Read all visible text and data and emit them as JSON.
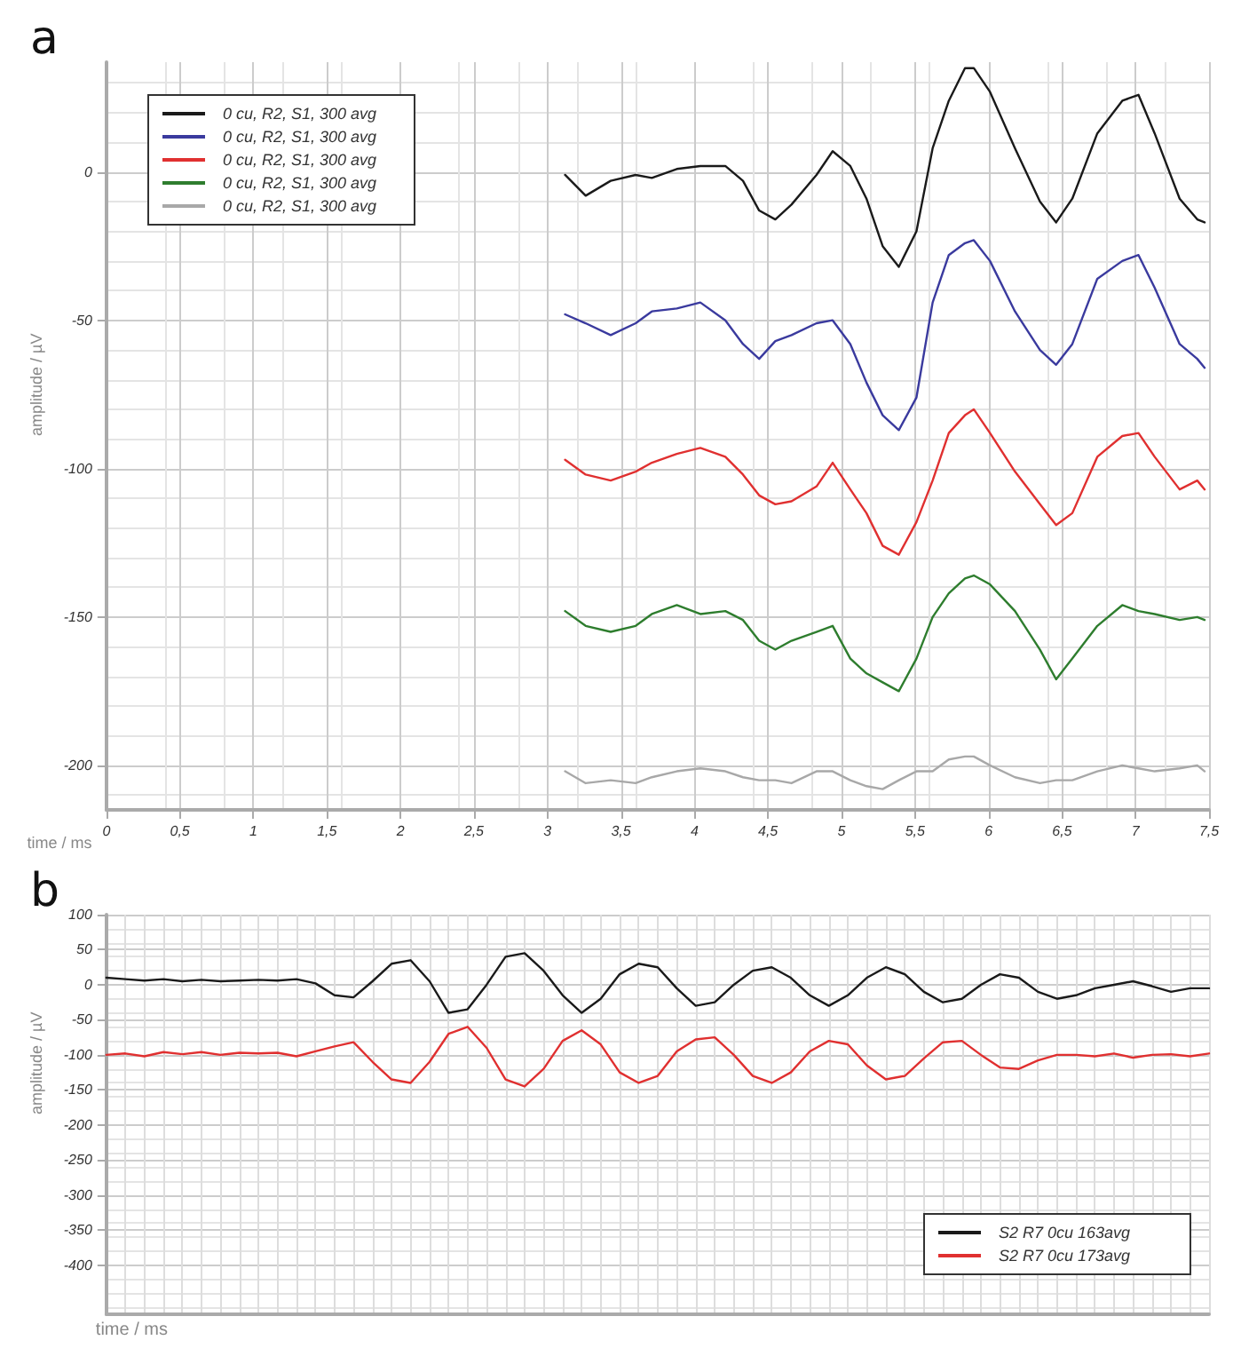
{
  "chart_data": [
    {
      "type": "line",
      "title": "a",
      "xlabel": "time / ms",
      "ylabel": "amplitude / µV",
      "xlim": [
        0,
        7.5
      ],
      "ylim": [
        -215,
        37
      ],
      "xticks": [
        0,
        {
          "value": 0.5,
          "label": "0,5"
        },
        1,
        {
          "value": 1.5,
          "label": "1,5"
        },
        2,
        {
          "value": 2.5,
          "label": "2,5"
        },
        3,
        {
          "value": 3.5,
          "label": "3,5"
        },
        4,
        {
          "value": 4.5,
          "label": "4,5"
        },
        5,
        {
          "value": 5.5,
          "label": "5,5"
        },
        6,
        {
          "value": 6.5,
          "label": "6,5"
        },
        7,
        {
          "value": 7.5,
          "label": "7,5"
        }
      ],
      "yticks": [
        0,
        -50,
        -100,
        -150,
        -200
      ],
      "grid": true,
      "legend": "top left",
      "marker": "none",
      "line_style": "solid",
      "x": [
        3.12,
        3.26,
        3.43,
        3.6,
        3.71,
        3.88,
        4.04,
        4.21,
        4.33,
        4.44,
        4.55,
        4.66,
        4.83,
        4.94,
        5.06,
        5.17,
        5.28,
        5.39,
        5.51,
        5.62,
        5.73,
        5.84,
        5.9,
        6.01,
        6.18,
        6.35,
        6.46,
        6.57,
        6.74,
        6.91,
        7.02,
        7.13,
        7.3,
        7.42,
        7.47
      ],
      "series": [
        {
          "name": "0 cu, R2, S1, 300 avg",
          "color": "#1a1a1a",
          "values": [
            -1,
            -8,
            -3,
            -1,
            -2,
            1,
            2,
            2,
            -3,
            -13,
            -16,
            -11,
            -1,
            7,
            2,
            -9,
            -25,
            -32,
            -20,
            8,
            24,
            35,
            35,
            27,
            8,
            -10,
            -17,
            -9,
            13,
            24,
            26,
            13,
            -9,
            -16,
            -17
          ]
        },
        {
          "name": "0 cu, R2, S1, 300 avg",
          "color": "#3a3a9e",
          "values": [
            -48,
            -51,
            -55,
            -51,
            -47,
            -46,
            -44,
            -50,
            -58,
            -63,
            -57,
            -55,
            -51,
            -50,
            -58,
            -71,
            -82,
            -87,
            -76,
            -44,
            -28,
            -24,
            -23,
            -30,
            -47,
            -60,
            -65,
            -58,
            -36,
            -30,
            -28,
            -39,
            -58,
            -63,
            -66
          ]
        },
        {
          "name": "0 cu, R2, S1, 300 avg",
          "color": "#e03030",
          "values": [
            -97,
            -102,
            -104,
            -101,
            -98,
            -95,
            -93,
            -96,
            -102,
            -109,
            -112,
            -111,
            -106,
            -98,
            -107,
            -115,
            -126,
            -129,
            -118,
            -104,
            -88,
            -82,
            -80,
            -88,
            -101,
            -112,
            -119,
            -115,
            -96,
            -89,
            -88,
            -96,
            -107,
            -104,
            -107
          ]
        },
        {
          "name": "0 cu, R2, S1, 300 avg",
          "color": "#2e7d2e",
          "values": [
            -148,
            -153,
            -155,
            -153,
            -149,
            -146,
            -149,
            -148,
            -151,
            -158,
            -161,
            -158,
            -155,
            -153,
            -164,
            -169,
            -172,
            -175,
            -164,
            -150,
            -142,
            -137,
            -136,
            -139,
            -148,
            -161,
            -171,
            -164,
            -153,
            -146,
            -148,
            -149,
            -151,
            -150,
            -151
          ]
        },
        {
          "name": "0 cu, R2, S1, 300 avg",
          "color": "#a8a8a8",
          "values": [
            -202,
            -206,
            -205,
            -206,
            -204,
            -202,
            -201,
            -202,
            -204,
            -205,
            -205,
            -206,
            -202,
            -202,
            -205,
            -207,
            -208,
            -205,
            -202,
            -202,
            -198,
            -197,
            -197,
            -200,
            -204,
            -206,
            -205,
            -205,
            -202,
            -200,
            -201,
            -202,
            -201,
            -200,
            -202
          ]
        }
      ]
    },
    {
      "type": "line",
      "title": "b",
      "xlabel": "time / ms",
      "ylabel": "amplitude / µV",
      "ylim": [
        -470,
        100
      ],
      "yticks": [
        100,
        50,
        0,
        -50,
        -100,
        -150,
        -200,
        -250,
        -300,
        -350,
        -400
      ],
      "grid": true,
      "legend": "bottom right",
      "marker": "none",
      "line_style": "solid",
      "tick_labels": "y",
      "categories": [
        null,
        null,
        null,
        null,
        null,
        null,
        null,
        null,
        null,
        null,
        null,
        null,
        null,
        null,
        null,
        null,
        null,
        null,
        null,
        null,
        null,
        null,
        null,
        null,
        null,
        null,
        null,
        null,
        null,
        null,
        null,
        null,
        null,
        null,
        null,
        null,
        null,
        null,
        null,
        null,
        null,
        null,
        null,
        null,
        null,
        null,
        null,
        null,
        null,
        null,
        null,
        null,
        null,
        null,
        null,
        null,
        null,
        null,
        null
      ],
      "series": [
        {
          "name": "S2 R7 0cu 163avg",
          "color": "#1a1a1a",
          "values": [
            10,
            8,
            6,
            8,
            5,
            7,
            5,
            6,
            7,
            6,
            8,
            2,
            -15,
            -18,
            5,
            30,
            35,
            5,
            -40,
            -35,
            0,
            40,
            45,
            20,
            -15,
            -40,
            -20,
            15,
            30,
            25,
            -5,
            -30,
            -25,
            0,
            20,
            25,
            10,
            -15,
            -30,
            -15,
            10,
            25,
            15,
            -10,
            -25,
            -20,
            0,
            15,
            10,
            -10,
            -20,
            -15,
            -5,
            0,
            5,
            -2,
            -10,
            -5,
            -5
          ]
        },
        {
          "name": "S2 R7 0cu 173avg",
          "color": "#e03030",
          "values": [
            -100,
            -98,
            -102,
            -96,
            -99,
            -96,
            -100,
            -97,
            -98,
            -97,
            -102,
            -95,
            -88,
            -82,
            -110,
            -135,
            -140,
            -110,
            -70,
            -60,
            -90,
            -135,
            -145,
            -120,
            -80,
            -65,
            -85,
            -125,
            -140,
            -130,
            -95,
            -78,
            -75,
            -100,
            -130,
            -140,
            -125,
            -95,
            -80,
            -85,
            -115,
            -135,
            -130,
            -105,
            -82,
            -80,
            -100,
            -118,
            -120,
            -108,
            -100,
            -100,
            -102,
            -98,
            -104,
            -100,
            -99,
            -102,
            -98
          ]
        }
      ]
    }
  ]
}
